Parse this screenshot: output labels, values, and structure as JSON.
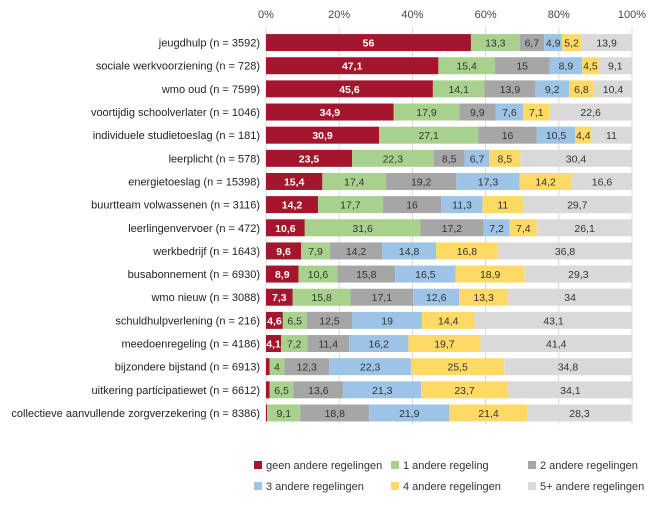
{
  "chart_data": {
    "type": "bar",
    "orientation": "horizontal",
    "stacked": true,
    "xlim": [
      0,
      100
    ],
    "x_ticks": [
      "0%",
      "20%",
      "40%",
      "60%",
      "80%",
      "100%"
    ],
    "grid": true,
    "legend_position": "bottom",
    "categories": [
      "jeugdhulp (n = 3592)",
      "sociale werkvoorziening (n = 728)",
      "wmo oud (n = 7599)",
      "voortijdig schoolverlater (n = 1046)",
      "individuele studietoeslag (n = 181)",
      "leerplicht (n = 578)",
      "energietoeslag (n = 15398)",
      "buurtteam volwassenen (n = 3116)",
      "leerlingenvervoer (n = 472)",
      "werkbedrijf (n = 1643)",
      "busabonnement (n = 6930)",
      "wmo nieuw (n = 3088)",
      "schuldhulpverlening (n = 216)",
      "meedoenregeling (n = 4186)",
      "bijzondere bijstand (n = 6913)",
      "uitkering participatiewet (n = 6612)",
      "collectieve aanvullende zorgverzekering (n = 8386)"
    ],
    "series": [
      {
        "name": "geen andere regelingen",
        "color": "#A3162E",
        "values": [
          56,
          47.1,
          45.6,
          34.9,
          30.9,
          23.5,
          15.4,
          14.2,
          10.6,
          9.6,
          8.9,
          7.3,
          4.6,
          4.1,
          1.0,
          1.0,
          0.3
        ],
        "labels": [
          "56",
          "47,1",
          "45,6",
          "34,9",
          "30,9",
          "23,5",
          "15,4",
          "14,2",
          "10,6",
          "9,6",
          "8,9",
          "7,3",
          "4,6",
          "4,1",
          "",
          "",
          ""
        ]
      },
      {
        "name": "1 andere regeling",
        "color": "#A9D18E",
        "values": [
          13.3,
          15.4,
          14.1,
          17.9,
          27.1,
          22.3,
          17.4,
          17.7,
          31.6,
          7.9,
          10.6,
          15.8,
          6.5,
          7.2,
          4,
          6.5,
          9.1
        ],
        "labels": [
          "13,3",
          "15,4",
          "14,1",
          "17,9",
          "27,1",
          "22,3",
          "17,4",
          "17,7",
          "31,6",
          "7,9",
          "10,6",
          "15,8",
          "6,5",
          "7,2",
          "4",
          "6,5",
          "9,1"
        ]
      },
      {
        "name": "2 andere regelingen",
        "color": "#A6A6A6",
        "values": [
          6.7,
          15,
          13.9,
          9.9,
          16,
          8.5,
          19.2,
          16,
          17.2,
          14.2,
          15.8,
          17.1,
          12.5,
          11.4,
          12.3,
          13.6,
          18.8
        ],
        "labels": [
          "6,7",
          "15",
          "13,9",
          "9,9",
          "16",
          "8,5",
          "19,2",
          "16",
          "17,2",
          "14,2",
          "15,8",
          "17,1",
          "12,5",
          "11,4",
          "12,3",
          "13,6",
          "18,8"
        ]
      },
      {
        "name": "3 andere regelingen",
        "color": "#9DC3E6",
        "values": [
          4.9,
          8.9,
          9.2,
          7.6,
          10.5,
          6.7,
          17.3,
          11.3,
          7.2,
          14.8,
          16.5,
          12.6,
          19,
          16.2,
          22.3,
          21.3,
          21.9
        ],
        "labels": [
          "4,9",
          "8,9",
          "9,2",
          "7,6",
          "10,5",
          "6,7",
          "17,3",
          "11,3",
          "7,2",
          "14,8",
          "16,5",
          "12,6",
          "19",
          "16,2",
          "22,3",
          "21,3",
          "21,9"
        ]
      },
      {
        "name": "4 andere regelingen",
        "color": "#FFD966",
        "values": [
          5.2,
          4.5,
          6.8,
          7.1,
          4.4,
          8.5,
          14.2,
          11,
          7.4,
          16.8,
          18.9,
          13.3,
          14.4,
          19.7,
          25.5,
          23.7,
          21.4
        ],
        "labels": [
          "5,2",
          "4,5",
          "6,8",
          "7,1",
          "4,4",
          "8,5",
          "14,2",
          "11",
          "7,4",
          "16,8",
          "18,9",
          "13,3",
          "14,4",
          "19,7",
          "25,5",
          "23,7",
          "21,4"
        ]
      },
      {
        "name": "5+ andere regelingen",
        "color": "#D9D9D9",
        "values": [
          13.9,
          9.1,
          10.4,
          22.6,
          11,
          30.4,
          16.6,
          29.7,
          26.1,
          36.8,
          29.3,
          34,
          43.1,
          41.4,
          34.8,
          34.1,
          28.3
        ],
        "labels": [
          "13,9",
          "9,1",
          "10,4",
          "22,6",
          "11",
          "30,4",
          "16,6",
          "29,7",
          "26,1",
          "36,8",
          "29,3",
          "34",
          "43,1",
          "41,4",
          "34,8",
          "34,1",
          "28,3"
        ]
      }
    ]
  }
}
